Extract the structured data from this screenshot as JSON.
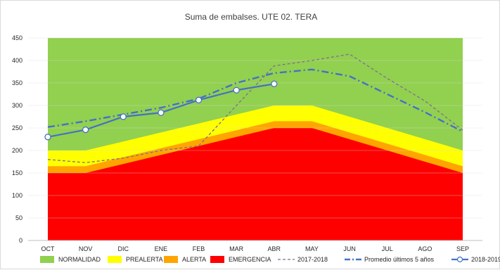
{
  "chart_data": {
    "type": "area",
    "title": "Suma de embalses. UTE 02. TERA",
    "categories": [
      "OCT",
      "NOV",
      "DIC",
      "ENE",
      "FEB",
      "MAR",
      "ABR",
      "MAY",
      "JUN",
      "JUL",
      "AGO",
      "SEP"
    ],
    "ylim": [
      0,
      450
    ],
    "yticks": [
      0,
      50,
      100,
      150,
      200,
      250,
      300,
      350,
      400,
      450
    ],
    "grid": true,
    "legend_position": "bottom",
    "bands": [
      {
        "name": "NORMALIDAD",
        "color": "#92d050",
        "values": [
          450,
          450,
          450,
          450,
          450,
          450,
          450,
          450,
          450,
          450,
          450,
          450
        ]
      },
      {
        "name": "PREALERTA",
        "color": "#ffff00",
        "values": [
          200,
          200,
          220,
          240,
          260,
          280,
          300,
          300,
          275,
          250,
          225,
          200
        ]
      },
      {
        "name": "ALERTA",
        "color": "#ffa500",
        "values": [
          165,
          165,
          185,
          205,
          225,
          245,
          265,
          265,
          240,
          215,
          190,
          165
        ]
      },
      {
        "name": "EMERGENCIA",
        "color": "#ff0000",
        "values": [
          150,
          150,
          170,
          190,
          210,
          230,
          250,
          250,
          225,
          200,
          175,
          150
        ]
      }
    ],
    "series": [
      {
        "name": "2017-2018",
        "color": "#7f6f8f",
        "style": "dashed",
        "values": [
          180,
          173,
          183,
          200,
          210,
          300,
          388,
          400,
          414,
          360,
          310,
          245
        ]
      },
      {
        "name": "Promedio últimos 5 años",
        "color": "#4472c4",
        "style": "dashdot",
        "values": [
          252,
          265,
          280,
          295,
          315,
          350,
          372,
          380,
          365,
          325,
          285,
          242
        ]
      },
      {
        "name": "2018-2019",
        "color": "#4472c4",
        "style": "solid-markers",
        "values": [
          230,
          246,
          275,
          284,
          312,
          334,
          348,
          null,
          null,
          null,
          null,
          null
        ]
      }
    ]
  }
}
